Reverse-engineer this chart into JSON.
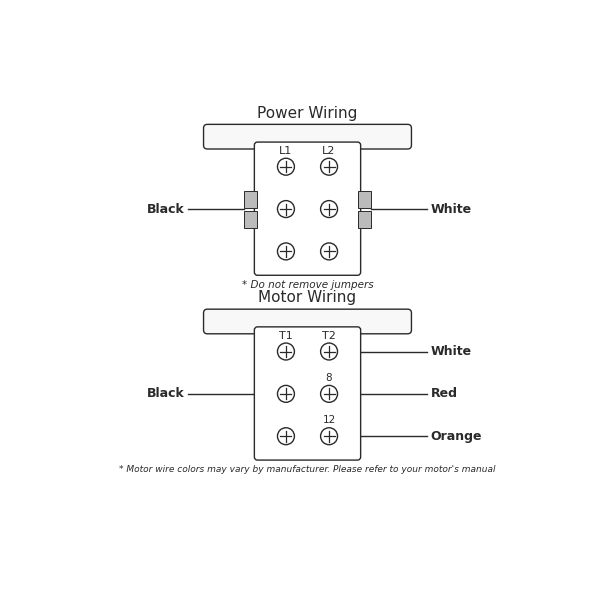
{
  "bg_color": "#ffffff",
  "line_color": "#2a2a2a",
  "gray_color": "#999999",
  "light_gray": "#bbbbbb",
  "text_color": "#2a2a2a",
  "power_title": "Power Wiring",
  "power_note": "* Do not remove jumpers",
  "power_labels_top": [
    "L1",
    "L2"
  ],
  "power_wire_left": "Black",
  "power_wire_right": "White",
  "motor_title": "Motor Wiring",
  "motor_note": "* Motor wire colors may vary by manufacturer. Please refer to your motor's manual",
  "motor_labels_top": [
    "T1",
    "T2"
  ],
  "motor_wire_left": "Black",
  "motor_wires_right": [
    "White",
    "Red",
    "Orange"
  ],
  "motor_terminal_labels": [
    "8",
    "12"
  ],
  "power_ox": 3.0,
  "power_oy": 4.35,
  "motor_ox": 3.0,
  "motor_oy": 1.55
}
